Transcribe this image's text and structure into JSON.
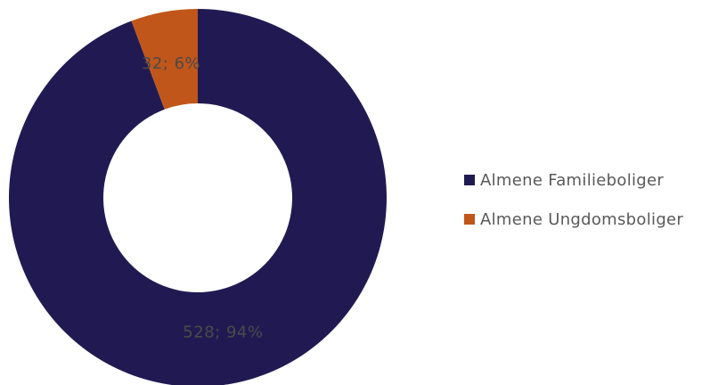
{
  "chart_data": {
    "type": "pie",
    "donut": true,
    "categories": [
      "Almene Familieboliger",
      "Almene Ungdomsboliger"
    ],
    "values": [
      528,
      32
    ],
    "percentages": [
      94,
      6
    ],
    "data_labels": [
      "528; 94%",
      "32; 6%"
    ],
    "colors": [
      "#211a52",
      "#c0561a"
    ],
    "legend_position": "right",
    "title": ""
  }
}
